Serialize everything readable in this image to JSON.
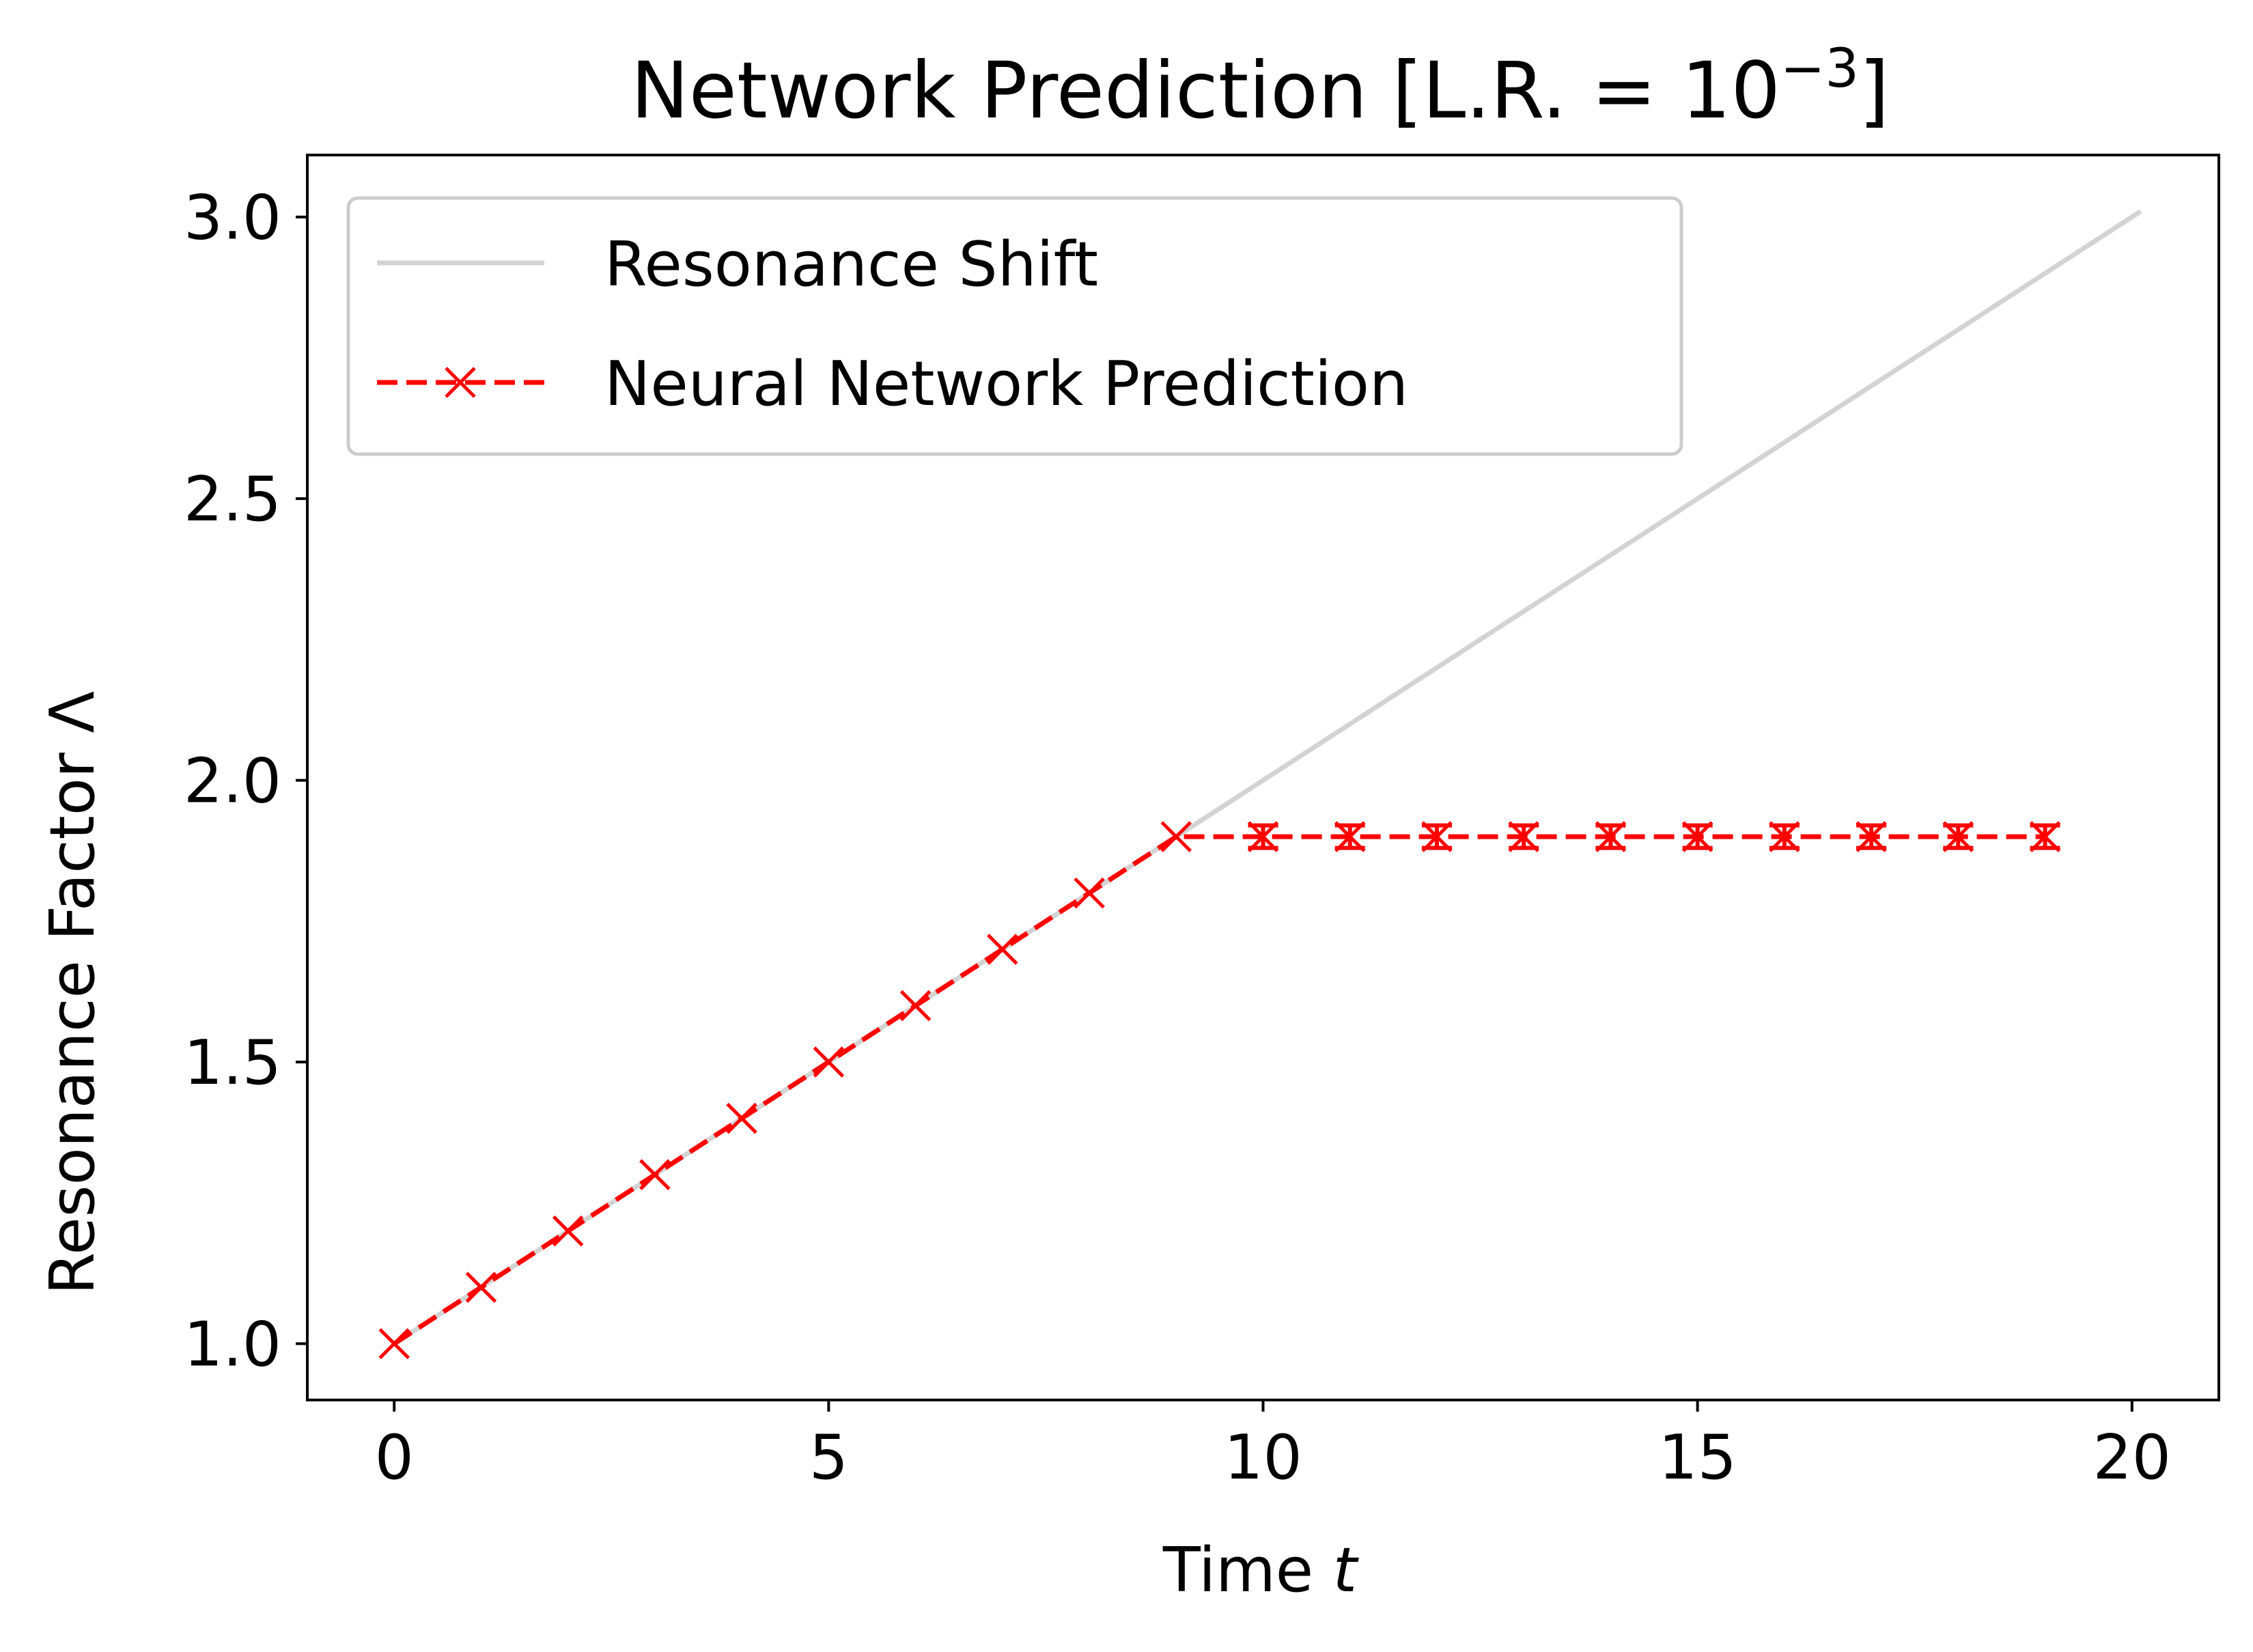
{
  "chart_data": {
    "type": "line",
    "title": "Network Prediction [L.R. = 10",
    "title_superscript": "−3",
    "title_suffix": "]",
    "xlabel": "Time ",
    "xlabel_var": "t",
    "ylabel": "Resonance Factor Λ",
    "xlim": [
      -1,
      21
    ],
    "ylim": [
      0.9,
      3.11
    ],
    "xticks": [
      0,
      5,
      10,
      15,
      20
    ],
    "yticks": [
      1.0,
      1.5,
      2.0,
      2.5,
      3.0
    ],
    "xtick_labels": [
      "0",
      "5",
      "10",
      "15",
      "20"
    ],
    "ytick_labels": [
      "1.0",
      "1.5",
      "2.0",
      "2.5",
      "3.0"
    ],
    "grid": false,
    "legend_position": "upper-left",
    "series": [
      {
        "name": "Resonance Shift",
        "style": "solid",
        "color": "#d3d3d3",
        "x": [
          0,
          20.1
        ],
        "y": [
          1.0,
          3.01
        ]
      },
      {
        "name": "Neural Network Prediction",
        "style": "dashed",
        "marker": "x",
        "color": "#ff0000",
        "x": [
          0,
          1,
          2,
          3,
          4,
          5,
          6,
          7,
          8,
          9,
          10,
          11,
          12,
          13,
          14,
          15,
          16,
          17,
          18,
          19
        ],
        "y": [
          1.0,
          1.1,
          1.2,
          1.3,
          1.4,
          1.5,
          1.6,
          1.7,
          1.8,
          1.9,
          1.9,
          1.9,
          1.9,
          1.9,
          1.9,
          1.9,
          1.9,
          1.9,
          1.9,
          1.9
        ],
        "yerr": [
          0,
          0,
          0,
          0,
          0,
          0,
          0,
          0,
          0,
          0,
          0.02,
          0.02,
          0.02,
          0.02,
          0.02,
          0.02,
          0.02,
          0.02,
          0.02,
          0.02
        ]
      }
    ]
  }
}
